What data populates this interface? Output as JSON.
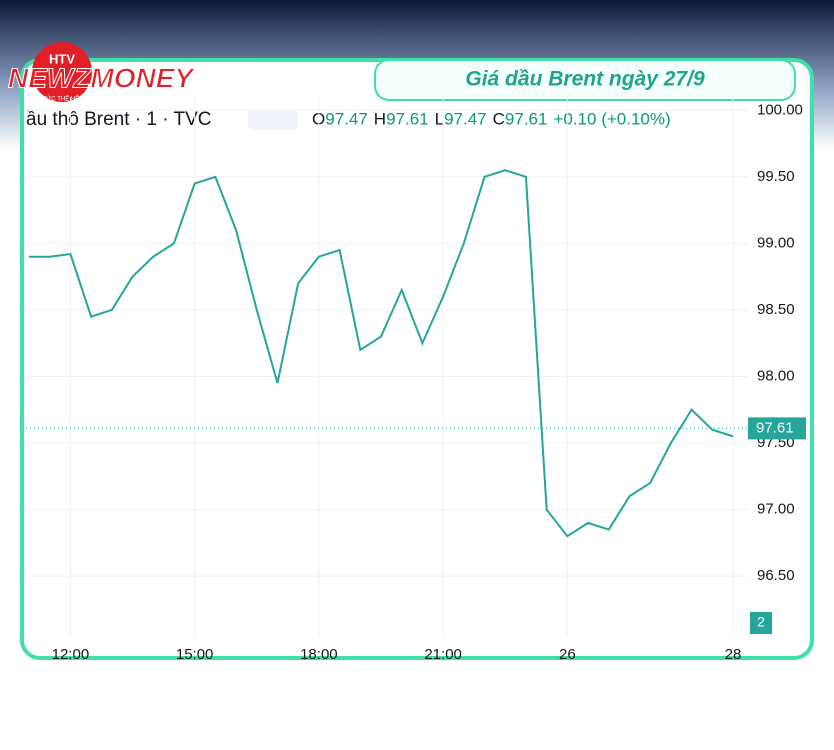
{
  "branding": {
    "logo": "NEWZMONEY",
    "badge": "HTV",
    "tagline": "TIN TỨC THẾ HỆ MỚI"
  },
  "chart_data": {
    "type": "line",
    "title": "Giá dầu Brent ngày 27/9",
    "symbol": "ầu thô Brent · 1 · TVC",
    "ohlc": [
      {
        "label": "O",
        "value": 97.47
      },
      {
        "label": "H",
        "value": 97.61
      },
      {
        "label": "L",
        "value": 97.47
      },
      {
        "label": "C",
        "value": 97.61
      }
    ],
    "change": "+0.10 (+0.10%)",
    "last_price": 97.61,
    "volume_label": 2,
    "categories": [
      null,
      null,
      "12:00",
      null,
      null,
      null,
      null,
      null,
      "15:00",
      null,
      null,
      null,
      null,
      null,
      "18:00",
      null,
      null,
      null,
      null,
      null,
      "21:00",
      null,
      null,
      null,
      null,
      null,
      "26",
      null,
      null,
      null,
      null,
      null,
      null,
      null,
      "28"
    ],
    "series": [
      {
        "name": "Brent",
        "color": "#26a69a",
        "values": [
          98.9,
          98.9,
          98.92,
          98.45,
          98.5,
          98.75,
          98.9,
          99.0,
          99.45,
          99.5,
          99.1,
          98.5,
          97.95,
          98.7,
          98.9,
          98.95,
          98.2,
          98.3,
          98.65,
          98.25,
          98.6,
          99.0,
          99.5,
          99.55,
          99.5,
          97.0,
          96.8,
          96.9,
          96.85,
          97.1,
          97.2,
          97.5,
          97.75,
          97.6,
          97.55
        ]
      }
    ],
    "ylim": [
      96.05,
      100.1
    ],
    "yticks": [
      {
        "value": 96.5,
        "label": "96.50"
      },
      {
        "value": 97,
        "label": "97.00"
      },
      {
        "value": 97.5,
        "label": "97.50"
      },
      {
        "value": 98,
        "label": "98.00"
      },
      {
        "value": 98.5,
        "label": "98.50"
      },
      {
        "value": 99,
        "label": "99.00"
      },
      {
        "value": 99.5,
        "label": "99.50"
      },
      {
        "value": 100,
        "label": "100.00"
      }
    ],
    "grid": true
  }
}
